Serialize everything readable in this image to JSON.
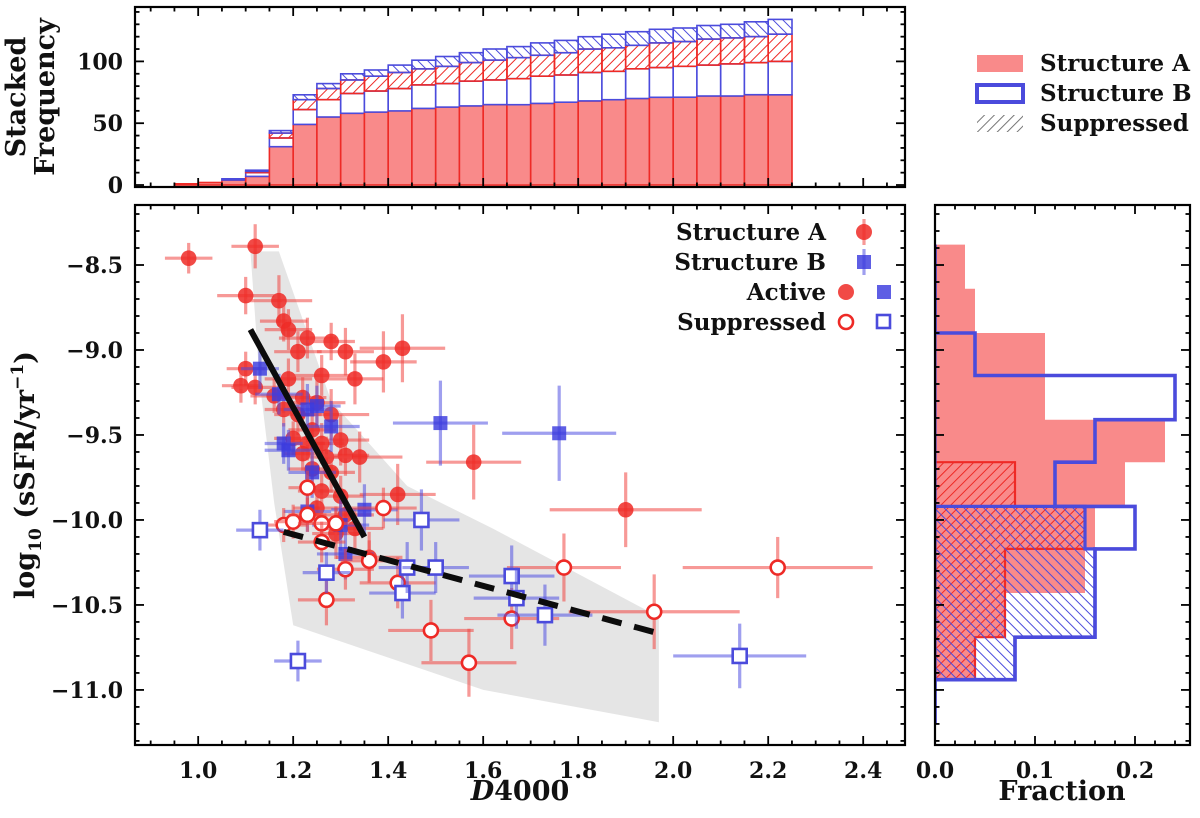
{
  "figure_title": "",
  "colors": {
    "red": "#ee2a26",
    "red_marker": "rgba(238,42,38,0.85)",
    "red_err": "rgba(240,70,66,0.55)",
    "salmon_fill": "#f98a8a",
    "blue": "#4b4bdc",
    "blue_marker": "rgba(58,58,222,0.82)",
    "blue_err": "rgba(80,80,226,0.55)",
    "hatch_gray": "#777777",
    "shade_gray": "rgba(0,0,0,0.10)",
    "line_black": "#0c0c0c"
  },
  "outer_legend": {
    "items": [
      {
        "label": "Structure A",
        "swatch": "red-fill"
      },
      {
        "label": "Structure B",
        "swatch": "blue-open"
      },
      {
        "label": "Suppressed",
        "swatch": "gray-hatch"
      }
    ]
  },
  "main_legend": {
    "items": [
      {
        "label": "Structure A",
        "type": "red-errbar-circle"
      },
      {
        "label": "Structure B",
        "type": "blue-errbar-square"
      },
      {
        "label": "Active",
        "type": "filled-pair"
      },
      {
        "label": "Suppressed",
        "type": "open-pair"
      }
    ]
  },
  "chart_data": [
    {
      "id": "top-histogram",
      "type": "bar",
      "stacked": true,
      "cumulative": true,
      "orientation": "vertical",
      "ylabel_lines": [
        "Stacked",
        "Frequency"
      ],
      "bin_start": 0.95,
      "bin_width": 0.05,
      "xlim": [
        0.867,
        2.488
      ],
      "ylim": [
        -1.6,
        144
      ],
      "yticks": [
        {
          "v": 0,
          "label": "0"
        },
        {
          "v": 50,
          "label": "50"
        },
        {
          "v": 100,
          "label": "100"
        }
      ],
      "ytick_minor_step": 10,
      "series": [
        {
          "name": "Structure A active",
          "style": "red-fill",
          "values": [
            1,
            2,
            4,
            7,
            31,
            49,
            55,
            58,
            59,
            60,
            62,
            63,
            64,
            65,
            65,
            66,
            67,
            68,
            69,
            70,
            71,
            71,
            72,
            72,
            73,
            73
          ]
        },
        {
          "name": "Structure B active",
          "style": "blue-open",
          "values": [
            0,
            0,
            1,
            3,
            7,
            12,
            14,
            16,
            17,
            18,
            19,
            19,
            20,
            20,
            21,
            22,
            22,
            23,
            23,
            24,
            24,
            25,
            25,
            26,
            26,
            27
          ]
        },
        {
          "name": "Structure A suppressed",
          "style": "red-hatch",
          "values": [
            0,
            0,
            0,
            1,
            4,
            8,
            9,
            11,
            12,
            13,
            13,
            14,
            15,
            16,
            17,
            17,
            18,
            19,
            19,
            19,
            20,
            20,
            21,
            21,
            21,
            22
          ]
        },
        {
          "name": "Structure B suppressed",
          "style": "blue-hatch",
          "values": [
            0,
            0,
            0,
            1,
            2,
            4,
            4,
            5,
            5,
            6,
            7,
            8,
            8,
            9,
            9,
            10,
            10,
            10,
            11,
            11,
            11,
            11,
            11,
            11,
            12,
            12
          ]
        }
      ]
    },
    {
      "id": "main-scatter",
      "type": "scatter",
      "xlabel_parts": {
        "italic": "D",
        "rest": "4000"
      },
      "ylabel_parts": {
        "pre": "log",
        "sub": "10",
        "mid": " (sSFR/yr",
        "sup": "−1",
        "post": ")"
      },
      "xlim": [
        0.867,
        2.488
      ],
      "ylim": [
        -11.324,
        -8.147
      ],
      "xticks": [
        {
          "v": 1.0,
          "label": "1.0"
        },
        {
          "v": 1.2,
          "label": "1.2"
        },
        {
          "v": 1.4,
          "label": "1.4"
        },
        {
          "v": 1.6,
          "label": "1.6"
        },
        {
          "v": 1.8,
          "label": "1.8"
        },
        {
          "v": 2.0,
          "label": "2.0"
        },
        {
          "v": 2.2,
          "label": "2.2"
        },
        {
          "v": 2.4,
          "label": "2.4"
        }
      ],
      "yticks": [
        {
          "v": -8.5,
          "label": "−8.5"
        },
        {
          "v": -9.0,
          "label": "−9.0"
        },
        {
          "v": -9.5,
          "label": "−9.5"
        },
        {
          "v": -10.0,
          "label": "−10.0"
        },
        {
          "v": -10.5,
          "label": "−10.5"
        },
        {
          "v": -11.0,
          "label": "−11.0"
        }
      ],
      "xtick_minor_step": 0.05,
      "ytick_minor_step": 0.1,
      "series": [
        {
          "name": "Structure A active",
          "marker": "circle",
          "fill": "red",
          "open": false,
          "points": [
            [
              0.98,
              -8.46,
              0.05,
              0.09
            ],
            [
              1.12,
              -8.39,
              0.05,
              0.13
            ],
            [
              1.1,
              -8.68,
              0.06,
              0.11
            ],
            [
              1.17,
              -8.71,
              0.07,
              0.15
            ],
            [
              1.18,
              -8.83,
              0.05,
              0.12
            ],
            [
              1.19,
              -8.88,
              0.05,
              0.12
            ],
            [
              1.23,
              -8.93,
              0.06,
              0.12
            ],
            [
              1.28,
              -8.95,
              0.05,
              0.11
            ],
            [
              1.21,
              -9.01,
              0.05,
              0.12
            ],
            [
              1.31,
              -9.01,
              0.06,
              0.14
            ],
            [
              1.43,
              -8.99,
              0.09,
              0.2
            ],
            [
              1.39,
              -9.07,
              0.07,
              0.18
            ],
            [
              1.1,
              -9.11,
              0.04,
              0.1
            ],
            [
              1.09,
              -9.21,
              0.04,
              0.1
            ],
            [
              1.12,
              -9.22,
              0.05,
              0.1
            ],
            [
              1.19,
              -9.17,
              0.05,
              0.12
            ],
            [
              1.26,
              -9.15,
              0.06,
              0.12
            ],
            [
              1.33,
              -9.17,
              0.06,
              0.15
            ],
            [
              1.16,
              -9.27,
              0.05,
              0.1
            ],
            [
              1.22,
              -9.28,
              0.05,
              0.12
            ],
            [
              1.25,
              -9.31,
              0.06,
              0.15
            ],
            [
              1.18,
              -9.35,
              0.04,
              0.1
            ],
            [
              1.21,
              -9.38,
              0.05,
              0.12
            ],
            [
              1.28,
              -9.38,
              0.08,
              0.15
            ],
            [
              1.24,
              -9.47,
              0.05,
              0.12
            ],
            [
              1.2,
              -9.52,
              0.04,
              0.1
            ],
            [
              1.23,
              -9.55,
              0.05,
              0.1
            ],
            [
              1.26,
              -9.55,
              0.05,
              0.12
            ],
            [
              1.3,
              -9.53,
              0.06,
              0.15
            ],
            [
              1.22,
              -9.61,
              0.04,
              0.1
            ],
            [
              1.27,
              -9.63,
              0.05,
              0.12
            ],
            [
              1.31,
              -9.62,
              0.05,
              0.12
            ],
            [
              1.24,
              -9.7,
              0.05,
              0.12
            ],
            [
              1.28,
              -9.72,
              0.05,
              0.12
            ],
            [
              1.34,
              -9.63,
              0.09,
              0.15
            ],
            [
              1.58,
              -9.66,
              0.1,
              0.22
            ],
            [
              1.42,
              -9.85,
              0.08,
              0.18
            ],
            [
              1.26,
              -9.83,
              0.05,
              0.12
            ],
            [
              1.3,
              -9.86,
              0.05,
              0.12
            ],
            [
              1.25,
              -9.93,
              0.05,
              0.12
            ],
            [
              1.31,
              -9.97,
              0.06,
              0.12
            ],
            [
              1.29,
              -10.08,
              0.05,
              0.15
            ],
            [
              1.33,
              -10.05,
              0.06,
              0.12
            ],
            [
              1.36,
              -10.22,
              0.07,
              0.15
            ],
            [
              1.9,
              -9.94,
              0.16,
              0.22
            ]
          ]
        },
        {
          "name": "Structure B active",
          "marker": "square",
          "fill": "blue",
          "open": false,
          "points": [
            [
              1.13,
              -9.11,
              0.04,
              0.12
            ],
            [
              1.17,
              -9.26,
              0.05,
              0.12
            ],
            [
              1.23,
              -9.35,
              0.05,
              0.15
            ],
            [
              1.25,
              -9.33,
              0.05,
              0.12
            ],
            [
              1.28,
              -9.45,
              0.06,
              0.15
            ],
            [
              1.18,
              -9.55,
              0.04,
              0.12
            ],
            [
              1.19,
              -9.59,
              0.05,
              0.12
            ],
            [
              1.24,
              -9.72,
              0.05,
              0.15
            ],
            [
              1.51,
              -9.43,
              0.1,
              0.25
            ],
            [
              1.76,
              -9.49,
              0.12,
              0.28
            ],
            [
              1.23,
              -9.95,
              0.05,
              0.12
            ],
            [
              1.35,
              -9.94,
              0.07,
              0.15
            ],
            [
              1.3,
              -10.03,
              0.06,
              0.15
            ],
            [
              1.31,
              -10.2,
              0.06,
              0.15
            ]
          ]
        },
        {
          "name": "Structure A suppressed",
          "marker": "circle",
          "fill": "red",
          "open": true,
          "points": [
            [
              1.23,
              -9.81,
              0.04,
              0.1
            ],
            [
              1.18,
              -10.03,
              0.05,
              0.1
            ],
            [
              1.2,
              -10.01,
              0.04,
              0.1
            ],
            [
              1.23,
              -9.97,
              0.04,
              0.1
            ],
            [
              1.26,
              -10.02,
              0.05,
              0.12
            ],
            [
              1.29,
              -10.02,
              0.05,
              0.1
            ],
            [
              1.39,
              -9.93,
              0.07,
              0.12
            ],
            [
              1.26,
              -10.13,
              0.05,
              0.12
            ],
            [
              1.31,
              -10.29,
              0.06,
              0.12
            ],
            [
              1.36,
              -10.24,
              0.06,
              0.12
            ],
            [
              1.27,
              -10.47,
              0.06,
              0.15
            ],
            [
              1.42,
              -10.37,
              0.08,
              0.15
            ],
            [
              1.49,
              -10.65,
              0.09,
              0.18
            ],
            [
              1.57,
              -10.84,
              0.1,
              0.2
            ],
            [
              1.66,
              -10.58,
              0.1,
              0.18
            ],
            [
              1.77,
              -10.28,
              0.12,
              0.2
            ],
            [
              1.96,
              -10.54,
              0.18,
              0.22
            ],
            [
              2.22,
              -10.28,
              0.2,
              0.18
            ]
          ]
        },
        {
          "name": "Structure B suppressed",
          "marker": "square",
          "fill": "blue",
          "open": true,
          "points": [
            [
              1.13,
              -10.06,
              0.05,
              0.12
            ],
            [
              1.27,
              -10.31,
              0.05,
              0.12
            ],
            [
              1.43,
              -10.43,
              0.07,
              0.15
            ],
            [
              1.47,
              -10.0,
              0.08,
              0.18
            ],
            [
              1.44,
              -10.28,
              0.06,
              0.15
            ],
            [
              1.5,
              -10.28,
              0.07,
              0.15
            ],
            [
              1.66,
              -10.33,
              0.09,
              0.18
            ],
            [
              1.67,
              -10.46,
              0.09,
              0.18
            ],
            [
              1.73,
              -10.56,
              0.1,
              0.18
            ],
            [
              1.21,
              -10.83,
              0.05,
              0.12
            ],
            [
              2.14,
              -10.8,
              0.14,
              0.19
            ]
          ]
        }
      ],
      "lines": [
        {
          "name": "fit-active",
          "style": "solid",
          "x1": 1.11,
          "y1": -8.88,
          "x2": 1.35,
          "y2": -10.1
        },
        {
          "name": "fit-suppressed",
          "style": "dashed",
          "x1": 1.18,
          "y1": -10.07,
          "x2": 1.96,
          "y2": -10.66
        }
      ],
      "shade_polygon": [
        [
          1.11,
          -8.42
        ],
        [
          1.17,
          -8.42
        ],
        [
          1.28,
          -9.3
        ],
        [
          1.44,
          -9.8
        ],
        [
          1.62,
          -10.05
        ],
        [
          1.97,
          -10.57
        ],
        [
          1.97,
          -11.19
        ],
        [
          1.6,
          -11.0
        ],
        [
          1.2,
          -10.62
        ],
        [
          1.16,
          -9.9
        ],
        [
          1.13,
          -9.2
        ]
      ]
    },
    {
      "id": "right-histogram",
      "type": "bar",
      "orientation": "horizontal",
      "xlabel": "Fraction",
      "xlim": [
        0,
        0.255
      ],
      "bin_edges": [
        -8.38,
        -8.64,
        -8.9,
        -9.15,
        -9.41,
        -9.66,
        -9.92,
        -10.17,
        -10.43,
        -10.69,
        -10.94,
        -11.2
      ],
      "xticks": [
        {
          "v": 0.0,
          "label": "0.0"
        },
        {
          "v": 0.1,
          "label": "0.1"
        },
        {
          "v": 0.2,
          "label": "0.2"
        }
      ],
      "xtick_minor_step": 0.02,
      "series": [
        {
          "name": "Structure A active fraction",
          "style": "red-fill",
          "values": [
            0.03,
            0.04,
            0.11,
            0.11,
            0.23,
            0.19,
            0.16,
            0.15,
            0.07,
            0.04,
            0.0
          ]
        },
        {
          "name": "Structure A suppressed fraction",
          "style": "red-hatch",
          "values": [
            0,
            0,
            0,
            0,
            0,
            0.08,
            0.15,
            0.07,
            0.07,
            0.04,
            0
          ]
        },
        {
          "name": "Structure B suppressed fraction",
          "style": "blue-hatch",
          "values": [
            0,
            0,
            0,
            0,
            0,
            0,
            0.15,
            0.16,
            0.16,
            0.08,
            0
          ]
        },
        {
          "name": "Structure B active fraction",
          "style": "blue-open",
          "values": [
            0.0,
            0.0,
            0.04,
            0.24,
            0.16,
            0.12,
            0.2,
            0.16,
            0.16,
            0.08,
            0.0
          ]
        }
      ]
    }
  ]
}
